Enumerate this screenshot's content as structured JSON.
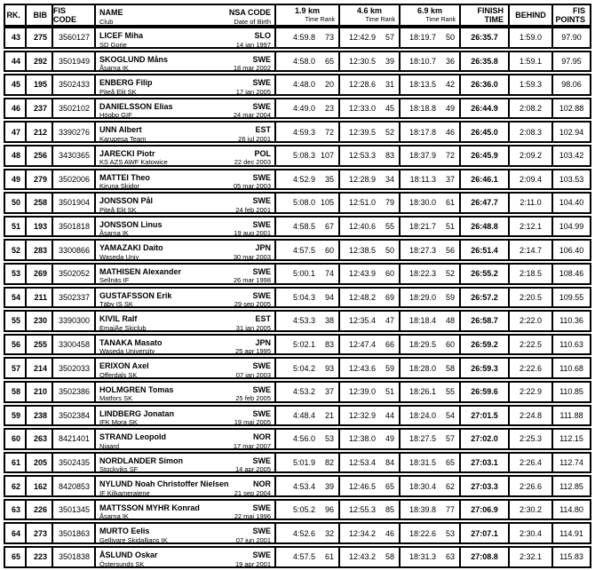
{
  "table": {
    "headers": {
      "rk": "RK.",
      "bib": "BIB",
      "fis_code": "FIS CODE",
      "name": "NAME",
      "club": "Club",
      "nsa_code": "NSA CODE",
      "dob": "Date of Birth",
      "km1": "1.9 km",
      "km2": "4.6 km",
      "km3": "6.9 km",
      "time_rank": "Time Rank",
      "finish1": "FINISH",
      "finish2": "TIME",
      "behind": "BEHIND",
      "fis1": "FIS",
      "fis2": "POINTS"
    },
    "rows": [
      {
        "rk": "43",
        "bib": "275",
        "fis_code": "3560127",
        "name": "LICEF Miha",
        "club": "SD Gorje",
        "nsa": "SLO",
        "dob": "14 jan 1997",
        "s1_time": "4:59.8",
        "s1_rank": "73",
        "s2_time": "12:42.9",
        "s2_rank": "57",
        "s3_time": "18:19.7",
        "s3_rank": "50",
        "finish": "26:35.7",
        "behind": "1:59.0",
        "points": "97.90"
      },
      {
        "rk": "44",
        "bib": "292",
        "fis_code": "3501949",
        "name": "SKOGLUND Måns",
        "club": "Åsarna IK",
        "nsa": "SWE",
        "dob": "18 mar 2002",
        "s1_time": "4:58.0",
        "s1_rank": "65",
        "s2_time": "12:30.5",
        "s2_rank": "39",
        "s3_time": "18:10.7",
        "s3_rank": "36",
        "finish": "26:35.8",
        "behind": "1:59.1",
        "points": "97.95"
      },
      {
        "rk": "45",
        "bib": "195",
        "fis_code": "3502433",
        "name": "ENBERG Filip",
        "club": "Piteå Elit SK",
        "nsa": "SWE",
        "dob": "17 jan 2005",
        "s1_time": "4:48.0",
        "s1_rank": "20",
        "s2_time": "12:28.6",
        "s2_rank": "31",
        "s3_time": "18:13.5",
        "s3_rank": "42",
        "finish": "26:36.0",
        "behind": "1:59.3",
        "points": "98.06"
      },
      {
        "rk": "46",
        "bib": "237",
        "fis_code": "3502102",
        "name": "DANIELSSON Elias",
        "club": "Högbo GIF",
        "nsa": "SWE",
        "dob": "24 mar 2004",
        "s1_time": "4:49.0",
        "s1_rank": "23",
        "s2_time": "12:33.0",
        "s2_rank": "45",
        "s3_time": "18:18.8",
        "s3_rank": "49",
        "finish": "26:44.9",
        "behind": "2:08.2",
        "points": "102.88"
      },
      {
        "rk": "47",
        "bib": "212",
        "fis_code": "3390276",
        "name": "UNN Albert",
        "club": "Karupesa Team",
        "nsa": "EST",
        "dob": "26 jul 2001",
        "s1_time": "4:59.3",
        "s1_rank": "72",
        "s2_time": "12:39.5",
        "s2_rank": "52",
        "s3_time": "18:17.8",
        "s3_rank": "46",
        "finish": "26:45.0",
        "behind": "2:08.3",
        "points": "102.94"
      },
      {
        "rk": "48",
        "bib": "256",
        "fis_code": "3430365",
        "name": "JARECKI Piotr",
        "club": "KS AZS AWF Katowice",
        "nsa": "POL",
        "dob": "22 dec 2003",
        "s1_time": "5:08.3",
        "s1_rank": "107",
        "s2_time": "12:53.3",
        "s2_rank": "83",
        "s3_time": "18:37.9",
        "s3_rank": "72",
        "finish": "26:45.9",
        "behind": "2:09.2",
        "points": "103.42"
      },
      {
        "rk": "49",
        "bib": "279",
        "fis_code": "3502006",
        "name": "MATTEI Theo",
        "club": "Kiruna Skidor",
        "nsa": "SWE",
        "dob": "05 mar 2003",
        "s1_time": "4:52.9",
        "s1_rank": "35",
        "s2_time": "12:28.9",
        "s2_rank": "34",
        "s3_time": "18:11.3",
        "s3_rank": "37",
        "finish": "26:46.1",
        "behind": "2:09.4",
        "points": "103.53"
      },
      {
        "rk": "50",
        "bib": "258",
        "fis_code": "3501904",
        "name": "JONSSON Pål",
        "club": "Piteå Elit SK",
        "nsa": "SWE",
        "dob": "24 feb 2001",
        "s1_time": "5:08.0",
        "s1_rank": "105",
        "s2_time": "12:51.0",
        "s2_rank": "79",
        "s3_time": "18:30.0",
        "s3_rank": "61",
        "finish": "26:47.7",
        "behind": "2:11.0",
        "points": "104.40"
      },
      {
        "rk": "51",
        "bib": "193",
        "fis_code": "3501818",
        "name": "JONSSON Linus",
        "club": "Åsarna IK",
        "nsa": "SWE",
        "dob": "19 aug 2001",
        "s1_time": "4:58.5",
        "s1_rank": "67",
        "s2_time": "12:40.6",
        "s2_rank": "55",
        "s3_time": "18:21.7",
        "s3_rank": "51",
        "finish": "26:48.8",
        "behind": "2:12.1",
        "points": "104.99"
      },
      {
        "rk": "52",
        "bib": "283",
        "fis_code": "3300866",
        "name": "YAMAZAKI Daito",
        "club": "Waseda Univ",
        "nsa": "JPN",
        "dob": "30 mar 2003",
        "s1_time": "4:57.5",
        "s1_rank": "60",
        "s2_time": "12:38.5",
        "s2_rank": "50",
        "s3_time": "18:27.3",
        "s3_rank": "56",
        "finish": "26:51.4",
        "behind": "2:14.7",
        "points": "106.40"
      },
      {
        "rk": "53",
        "bib": "269",
        "fis_code": "3502052",
        "name": "MATHISEN Alexander",
        "club": "Sellnäs IF",
        "nsa": "SWE",
        "dob": "26 mar 1998",
        "s1_time": "5:00.1",
        "s1_rank": "74",
        "s2_time": "12:43.9",
        "s2_rank": "60",
        "s3_time": "18:22.3",
        "s3_rank": "52",
        "finish": "26:55.2",
        "behind": "2:18.5",
        "points": "108.46"
      },
      {
        "rk": "54",
        "bib": "211",
        "fis_code": "3502337",
        "name": "GUSTAFSSON Erik",
        "club": "Täby IS SK",
        "nsa": "SWE",
        "dob": "29 sep 2005",
        "s1_time": "5:04.3",
        "s1_rank": "94",
        "s2_time": "12:48.2",
        "s2_rank": "69",
        "s3_time": "18:29.0",
        "s3_rank": "59",
        "finish": "26:57.2",
        "behind": "2:20.5",
        "points": "109.55"
      },
      {
        "rk": "55",
        "bib": "230",
        "fis_code": "3390300",
        "name": "KIVIL Ralf",
        "club": "EmajÄe Skiclub",
        "nsa": "EST",
        "dob": "31 jan 2005",
        "s1_time": "4:53.3",
        "s1_rank": "38",
        "s2_time": "12:35.4",
        "s2_rank": "47",
        "s3_time": "18:18.4",
        "s3_rank": "48",
        "finish": "26:58.7",
        "behind": "2:22.0",
        "points": "110.36"
      },
      {
        "rk": "56",
        "bib": "255",
        "fis_code": "3300458",
        "name": "TANAKA Masato",
        "club": "Waseda University",
        "nsa": "JPN",
        "dob": "25 apr 1995",
        "s1_time": "5:02.1",
        "s1_rank": "83",
        "s2_time": "12:47.4",
        "s2_rank": "66",
        "s3_time": "18:29.5",
        "s3_rank": "60",
        "finish": "26:59.2",
        "behind": "2:22.5",
        "points": "110.63"
      },
      {
        "rk": "57",
        "bib": "214",
        "fis_code": "3502033",
        "name": "ERIXON Axel",
        "club": "Offerdals SK",
        "nsa": "SWE",
        "dob": "07 jan 2003",
        "s1_time": "5:04.2",
        "s1_rank": "93",
        "s2_time": "12:43.6",
        "s2_rank": "59",
        "s3_time": "18:28.0",
        "s3_rank": "58",
        "finish": "26:59.3",
        "behind": "2:22.6",
        "points": "110.68"
      },
      {
        "rk": "58",
        "bib": "210",
        "fis_code": "3502386",
        "name": "HOLMGREN Tomas",
        "club": "Matfors SK",
        "nsa": "SWE",
        "dob": "25 feb 2005",
        "s1_time": "4:53.2",
        "s1_rank": "37",
        "s2_time": "12:39.0",
        "s2_rank": "51",
        "s3_time": "18:26.1",
        "s3_rank": "55",
        "finish": "26:59.6",
        "behind": "2:22.9",
        "points": "110.85"
      },
      {
        "rk": "59",
        "bib": "238",
        "fis_code": "3502384",
        "name": "LINDBERG Jonatan",
        "club": "IFK Mora SK",
        "nsa": "SWE",
        "dob": "19 maj 2005",
        "s1_time": "4:48.4",
        "s1_rank": "21",
        "s2_time": "12:32.9",
        "s2_rank": "44",
        "s3_time": "18:24.0",
        "s3_rank": "54",
        "finish": "27:01.5",
        "behind": "2:24.8",
        "points": "111.88"
      },
      {
        "rk": "60",
        "bib": "263",
        "fis_code": "8421401",
        "name": "STRAND Leopold",
        "club": "Njaard",
        "nsa": "NOR",
        "dob": "17 mar 2007",
        "s1_time": "4:56.0",
        "s1_rank": "53",
        "s2_time": "12:38.0",
        "s2_rank": "49",
        "s3_time": "18:27.5",
        "s3_rank": "57",
        "finish": "27:02.0",
        "behind": "2:25.3",
        "points": "112.15"
      },
      {
        "rk": "61",
        "bib": "205",
        "fis_code": "3502435",
        "name": "NORDLANDER Simon",
        "club": "Stockviks SF",
        "nsa": "SWE",
        "dob": "14 apr 2005",
        "s1_time": "5:01.9",
        "s1_rank": "82",
        "s2_time": "12:53.4",
        "s2_rank": "84",
        "s3_time": "18:31.5",
        "s3_rank": "65",
        "finish": "27:03.1",
        "behind": "2:26.4",
        "points": "112.74"
      },
      {
        "rk": "62",
        "bib": "162",
        "fis_code": "8420853",
        "name": "NYLUND Noah Christoffer Nielsen",
        "club": "IF Kilkameratene",
        "nsa": "NOR",
        "dob": "21 sep 2004",
        "s1_time": "4:53.4",
        "s1_rank": "39",
        "s2_time": "12:46.5",
        "s2_rank": "65",
        "s3_time": "18:30.4",
        "s3_rank": "62",
        "finish": "27:03.3",
        "behind": "2:26.6",
        "points": "112.85"
      },
      {
        "rk": "63",
        "bib": "226",
        "fis_code": "3501345",
        "name": "MATTSSON MYHR Konrad",
        "club": "Åsarna IK",
        "nsa": "SWE",
        "dob": "22 maj 1996",
        "s1_time": "5:05.2",
        "s1_rank": "96",
        "s2_time": "12:55.3",
        "s2_rank": "85",
        "s3_time": "18:39.8",
        "s3_rank": "77",
        "finish": "27:06.9",
        "behind": "2:30.2",
        "points": "114.80"
      },
      {
        "rk": "64",
        "bib": "273",
        "fis_code": "3501863",
        "name": "MURTO Eelis",
        "club": "Gellivare Skidallians IK",
        "nsa": "SWE",
        "dob": "07 jun 2001",
        "s1_time": "4:52.6",
        "s1_rank": "32",
        "s2_time": "12:34.2",
        "s2_rank": "46",
        "s3_time": "18:22.6",
        "s3_rank": "53",
        "finish": "27:07.1",
        "behind": "2:30.4",
        "points": "114.91"
      },
      {
        "rk": "65",
        "bib": "223",
        "fis_code": "3501838",
        "name": "ÅSLUND Oskar",
        "club": "Östersunds SK",
        "nsa": "SWE",
        "dob": "19 apr 2001",
        "s1_time": "4:57.5",
        "s1_rank": "61",
        "s2_time": "12:43.2",
        "s2_rank": "58",
        "s3_time": "18:31.3",
        "s3_rank": "63",
        "finish": "27:08.8",
        "behind": "2:32.1",
        "points": "115.83"
      }
    ]
  }
}
